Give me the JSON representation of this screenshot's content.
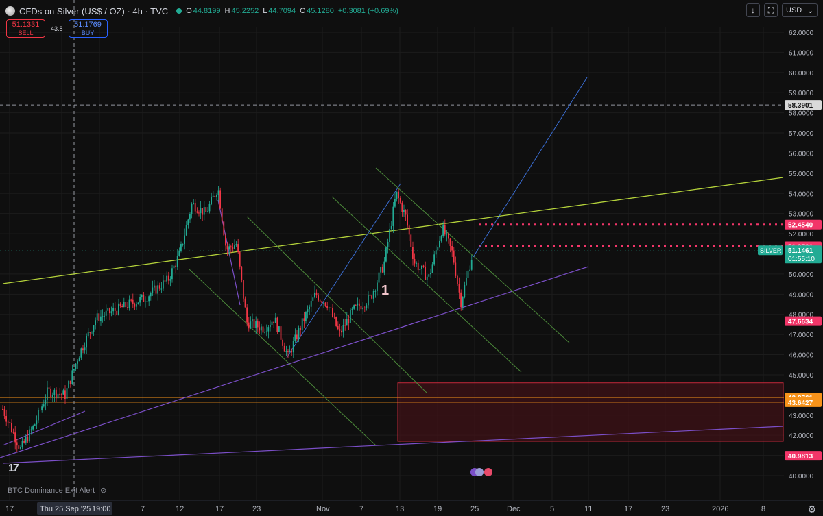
{
  "header": {
    "title": "CFDs on Silver (US$ / OZ) · 4h · TVC",
    "ohlc": [
      {
        "k": "O",
        "v": "44.8199"
      },
      {
        "k": "H",
        "v": "45.2252"
      },
      {
        "k": "L",
        "v": "44.7094"
      },
      {
        "k": "C",
        "v": "45.1280"
      }
    ],
    "change": "+0.3081 (+0.69%)"
  },
  "trade": {
    "sell_price": "51.1331",
    "sell_label": "SELL",
    "spread": "43.8",
    "buy_price": "51.1769",
    "buy_label": "BUY"
  },
  "toolbar": {
    "currency": "USD",
    "download_icon": "arrow-down-icon",
    "fullscreen_icon": "expand-icon"
  },
  "indicator": {
    "label": "BTC Dominance Exit Alert",
    "icon": "eye-off-icon"
  },
  "chart_data": {
    "type": "candlestick",
    "symbol": "SILVER",
    "y_axis": {
      "min": 40.0,
      "max": 62.0,
      "ticks": [
        "62.0000",
        "61.0000",
        "60.0000",
        "59.0000",
        "58.0000",
        "57.0000",
        "56.0000",
        "55.0000",
        "54.0000",
        "53.0000",
        "52.0000",
        "51.0000",
        "50.0000",
        "49.0000",
        "48.0000",
        "47.0000",
        "46.0000",
        "45.0000",
        "44.0000",
        "43.0000",
        "42.0000",
        "41.0000",
        "40.0000"
      ]
    },
    "x_axis": {
      "labels": [
        "17",
        "Thu 25 Sep '25",
        "19:00",
        "7",
        "12",
        "17",
        "23",
        "Nov",
        "7",
        "13",
        "19",
        "25",
        "Dec",
        "5",
        "11",
        "17",
        "23",
        "2026",
        "8"
      ]
    },
    "price_labels": [
      {
        "value": 58.3901,
        "text": "58.3901",
        "style": "dashed-white"
      },
      {
        "value": 52.454,
        "text": "52.4540",
        "style": "pink"
      },
      {
        "value": 51.3731,
        "text": "51.3731",
        "style": "pink"
      },
      {
        "value": 51.1461,
        "text": "51.1461",
        "style": "current",
        "symbol": "SILVER",
        "countdown": "01:55:10"
      },
      {
        "value": 47.6634,
        "text": "47.6634",
        "style": "pink"
      },
      {
        "value": 43.8761,
        "text": "43.8761",
        "style": "orange"
      },
      {
        "value": 43.6427,
        "text": "43.6427",
        "style": "orange"
      },
      {
        "value": 40.9813,
        "text": "40.9813",
        "style": "pink"
      }
    ],
    "annotations": [
      {
        "text": "1",
        "x": "Nov 12",
        "y": 49.4
      }
    ],
    "crosshair": {
      "x": "Thu 25 Sep '25 19:00",
      "y": 58.3901
    },
    "drawings": [
      "rising yellow-green trendline",
      "blue channel lines",
      "green descending parallel channels",
      "purple rising support lines",
      "orange horizontal lines 43.8761 and 43.6427",
      "red demand zone 41.7–44.6",
      "pink dotted levels 52.4540 and 51.3731"
    ],
    "colors": {
      "up": "#22ab94",
      "down": "#f23645",
      "trend_yellow": "#b5d33b",
      "blue": "#3b6fd6",
      "green": "#4c8a3a",
      "purple": "#7b4fc8",
      "orange": "#f7931a",
      "pink": "#f23669",
      "zone": "#7a1e28"
    }
  }
}
